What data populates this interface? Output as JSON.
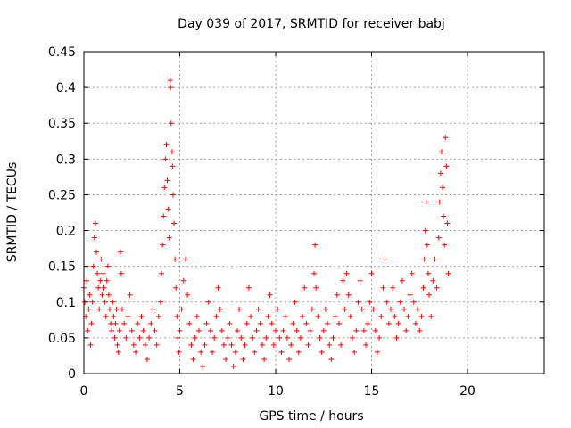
{
  "chart_data": {
    "type": "scatter",
    "title": "Day 039 of 2017, SRMTID for receiver babj",
    "xlabel": "GPS time / hours",
    "ylabel": "SRMTID / TECUs",
    "xlim": [
      0,
      24
    ],
    "ylim": [
      0,
      0.45
    ],
    "x_ticks": [
      0,
      5,
      10,
      15,
      20
    ],
    "x_tick_labels": [
      "0",
      "5",
      "10",
      "15",
      "20"
    ],
    "y_ticks": [
      0,
      0.05,
      0.1,
      0.15,
      0.2,
      0.25,
      0.3,
      0.35,
      0.4,
      0.45
    ],
    "y_tick_labels": [
      "0",
      "0.05",
      "0.1",
      "0.15",
      "0.2",
      "0.25",
      "0.3",
      "0.35",
      "0.4",
      "0.45"
    ],
    "grid": true,
    "marker": "+",
    "series_color": "#ff0000",
    "series": [
      {
        "name": "SRMTID",
        "points": [
          [
            0.0,
            0.12
          ],
          [
            0.05,
            0.1
          ],
          [
            0.1,
            0.08
          ],
          [
            0.15,
            0.13
          ],
          [
            0.2,
            0.06
          ],
          [
            0.25,
            0.09
          ],
          [
            0.3,
            0.11
          ],
          [
            0.35,
            0.04
          ],
          [
            0.4,
            0.07
          ],
          [
            0.45,
            0.1
          ],
          [
            0.5,
            0.15
          ],
          [
            0.55,
            0.19
          ],
          [
            0.6,
            0.21
          ],
          [
            0.65,
            0.17
          ],
          [
            0.7,
            0.14
          ],
          [
            0.75,
            0.12
          ],
          [
            0.8,
            0.09
          ],
          [
            0.85,
            0.13
          ],
          [
            0.9,
            0.16
          ],
          [
            0.95,
            0.11
          ],
          [
            1.0,
            0.14
          ],
          [
            1.05,
            0.12
          ],
          [
            1.1,
            0.1
          ],
          [
            1.15,
            0.08
          ],
          [
            1.2,
            0.13
          ],
          [
            1.25,
            0.15
          ],
          [
            1.3,
            0.11
          ],
          [
            1.35,
            0.09
          ],
          [
            1.4,
            0.07
          ],
          [
            1.45,
            0.06
          ],
          [
            1.5,
            0.1
          ],
          [
            1.55,
            0.08
          ],
          [
            1.6,
            0.05
          ],
          [
            1.65,
            0.07
          ],
          [
            1.7,
            0.09
          ],
          [
            1.75,
            0.04
          ],
          [
            1.8,
            0.03
          ],
          [
            1.85,
            0.06
          ],
          [
            1.9,
            0.17
          ],
          [
            1.95,
            0.14
          ],
          [
            2.0,
            0.09
          ],
          [
            2.1,
            0.07
          ],
          [
            2.2,
            0.05
          ],
          [
            2.3,
            0.08
          ],
          [
            2.4,
            0.11
          ],
          [
            2.5,
            0.06
          ],
          [
            2.6,
            0.04
          ],
          [
            2.7,
            0.03
          ],
          [
            2.8,
            0.07
          ],
          [
            2.9,
            0.05
          ],
          [
            3.0,
            0.08
          ],
          [
            3.1,
            0.06
          ],
          [
            3.2,
            0.04
          ],
          [
            3.3,
            0.02
          ],
          [
            3.4,
            0.05
          ],
          [
            3.5,
            0.07
          ],
          [
            3.6,
            0.09
          ],
          [
            3.7,
            0.06
          ],
          [
            3.8,
            0.04
          ],
          [
            3.9,
            0.08
          ],
          [
            4.0,
            0.1
          ],
          [
            4.05,
            0.14
          ],
          [
            4.1,
            0.18
          ],
          [
            4.15,
            0.22
          ],
          [
            4.2,
            0.26
          ],
          [
            4.25,
            0.3
          ],
          [
            4.3,
            0.32
          ],
          [
            4.35,
            0.27
          ],
          [
            4.4,
            0.23
          ],
          [
            4.45,
            0.19
          ],
          [
            4.5,
            0.41
          ],
          [
            4.52,
            0.4
          ],
          [
            4.55,
            0.35
          ],
          [
            4.6,
            0.31
          ],
          [
            4.62,
            0.29
          ],
          [
            4.65,
            0.25
          ],
          [
            4.7,
            0.21
          ],
          [
            4.75,
            0.16
          ],
          [
            4.8,
            0.12
          ],
          [
            4.85,
            0.08
          ],
          [
            4.9,
            0.05
          ],
          [
            4.95,
            0.03
          ],
          [
            5.0,
            0.06
          ],
          [
            5.1,
            0.09
          ],
          [
            5.2,
            0.13
          ],
          [
            5.3,
            0.16
          ],
          [
            5.4,
            0.11
          ],
          [
            5.5,
            0.07
          ],
          [
            5.6,
            0.04
          ],
          [
            5.7,
            0.02
          ],
          [
            5.8,
            0.05
          ],
          [
            5.9,
            0.08
          ],
          [
            6.0,
            0.06
          ],
          [
            6.1,
            0.03
          ],
          [
            6.2,
            0.01
          ],
          [
            6.3,
            0.04
          ],
          [
            6.4,
            0.07
          ],
          [
            6.5,
            0.1
          ],
          [
            6.6,
            0.06
          ],
          [
            6.7,
            0.03
          ],
          [
            6.8,
            0.05
          ],
          [
            6.9,
            0.08
          ],
          [
            7.0,
            0.12
          ],
          [
            7.1,
            0.09
          ],
          [
            7.2,
            0.06
          ],
          [
            7.3,
            0.04
          ],
          [
            7.4,
            0.02
          ],
          [
            7.5,
            0.05
          ],
          [
            7.6,
            0.07
          ],
          [
            7.7,
            0.04
          ],
          [
            7.8,
            0.01
          ],
          [
            7.9,
            0.03
          ],
          [
            8.0,
            0.06
          ],
          [
            8.1,
            0.09
          ],
          [
            8.2,
            0.05
          ],
          [
            8.3,
            0.02
          ],
          [
            8.4,
            0.04
          ],
          [
            8.5,
            0.07
          ],
          [
            8.6,
            0.12
          ],
          [
            8.7,
            0.08
          ],
          [
            8.8,
            0.05
          ],
          [
            8.9,
            0.03
          ],
          [
            9.0,
            0.06
          ],
          [
            9.1,
            0.09
          ],
          [
            9.2,
            0.07
          ],
          [
            9.3,
            0.04
          ],
          [
            9.4,
            0.02
          ],
          [
            9.5,
            0.05
          ],
          [
            9.6,
            0.08
          ],
          [
            9.7,
            0.11
          ],
          [
            9.8,
            0.07
          ],
          [
            9.9,
            0.04
          ],
          [
            10.0,
            0.06
          ],
          [
            10.1,
            0.09
          ],
          [
            10.2,
            0.05
          ],
          [
            10.3,
            0.03
          ],
          [
            10.4,
            0.06
          ],
          [
            10.5,
            0.08
          ],
          [
            10.6,
            0.05
          ],
          [
            10.7,
            0.02
          ],
          [
            10.8,
            0.04
          ],
          [
            10.9,
            0.07
          ],
          [
            11.0,
            0.1
          ],
          [
            11.1,
            0.06
          ],
          [
            11.2,
            0.03
          ],
          [
            11.3,
            0.05
          ],
          [
            11.4,
            0.08
          ],
          [
            11.5,
            0.12
          ],
          [
            11.6,
            0.07
          ],
          [
            11.7,
            0.04
          ],
          [
            11.8,
            0.06
          ],
          [
            11.9,
            0.09
          ],
          [
            12.0,
            0.14
          ],
          [
            12.05,
            0.18
          ],
          [
            12.1,
            0.12
          ],
          [
            12.2,
            0.08
          ],
          [
            12.3,
            0.05
          ],
          [
            12.4,
            0.03
          ],
          [
            12.5,
            0.06
          ],
          [
            12.6,
            0.09
          ],
          [
            12.7,
            0.07
          ],
          [
            12.8,
            0.04
          ],
          [
            12.9,
            0.02
          ],
          [
            13.0,
            0.05
          ],
          [
            13.1,
            0.08
          ],
          [
            13.2,
            0.11
          ],
          [
            13.3,
            0.07
          ],
          [
            13.4,
            0.04
          ],
          [
            13.5,
            0.13
          ],
          [
            13.6,
            0.09
          ],
          [
            13.7,
            0.14
          ],
          [
            13.8,
            0.11
          ],
          [
            13.9,
            0.08
          ],
          [
            14.0,
            0.05
          ],
          [
            14.1,
            0.03
          ],
          [
            14.2,
            0.06
          ],
          [
            14.3,
            0.1
          ],
          [
            14.4,
            0.13
          ],
          [
            14.5,
            0.09
          ],
          [
            14.6,
            0.06
          ],
          [
            14.7,
            0.04
          ],
          [
            14.8,
            0.07
          ],
          [
            14.9,
            0.1
          ],
          [
            15.0,
            0.14
          ],
          [
            15.1,
            0.09
          ],
          [
            15.2,
            0.06
          ],
          [
            15.3,
            0.03
          ],
          [
            15.4,
            0.05
          ],
          [
            15.5,
            0.08
          ],
          [
            15.6,
            0.12
          ],
          [
            15.7,
            0.16
          ],
          [
            15.8,
            0.1
          ],
          [
            15.9,
            0.07
          ],
          [
            16.0,
            0.09
          ],
          [
            16.1,
            0.12
          ],
          [
            16.2,
            0.08
          ],
          [
            16.3,
            0.05
          ],
          [
            16.4,
            0.07
          ],
          [
            16.5,
            0.1
          ],
          [
            16.6,
            0.13
          ],
          [
            16.7,
            0.09
          ],
          [
            16.8,
            0.06
          ],
          [
            16.9,
            0.08
          ],
          [
            17.0,
            0.11
          ],
          [
            17.1,
            0.14
          ],
          [
            17.2,
            0.1
          ],
          [
            17.3,
            0.07
          ],
          [
            17.4,
            0.09
          ],
          [
            17.5,
            0.06
          ],
          [
            17.6,
            0.08
          ],
          [
            17.7,
            0.12
          ],
          [
            17.75,
            0.16
          ],
          [
            17.8,
            0.2
          ],
          [
            17.85,
            0.24
          ],
          [
            17.9,
            0.18
          ],
          [
            17.95,
            0.14
          ],
          [
            18.0,
            0.11
          ],
          [
            18.1,
            0.08
          ],
          [
            18.2,
            0.13
          ],
          [
            18.3,
            0.16
          ],
          [
            18.4,
            0.12
          ],
          [
            18.5,
            0.19
          ],
          [
            18.55,
            0.24
          ],
          [
            18.6,
            0.28
          ],
          [
            18.65,
            0.31
          ],
          [
            18.7,
            0.26
          ],
          [
            18.75,
            0.22
          ],
          [
            18.8,
            0.18
          ],
          [
            18.85,
            0.33
          ],
          [
            18.9,
            0.29
          ],
          [
            18.95,
            0.21
          ],
          [
            19.0,
            0.14
          ]
        ]
      }
    ]
  }
}
